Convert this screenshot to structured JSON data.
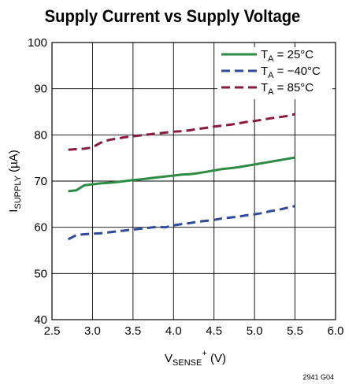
{
  "chart_data": {
    "type": "line",
    "title": "Supply Current vs Supply Voltage",
    "xlabel": {
      "main": "V",
      "sub": "SENSE",
      "sup": "+",
      "unit": " (V)"
    },
    "ylabel": {
      "main": "I",
      "sub": "SUPPLY",
      "unit": " (µA)"
    },
    "xlim": [
      2.5,
      6.0
    ],
    "ylim": [
      40,
      100
    ],
    "xticks": [
      "2.5",
      "3.0",
      "3.5",
      "4.0",
      "4.5",
      "5.0",
      "5.5",
      "6.0"
    ],
    "yticks": [
      "40",
      "50",
      "60",
      "70",
      "80",
      "90",
      "100"
    ],
    "grid": true,
    "legend_position": "top-right",
    "series": [
      {
        "name": "T_A = 25°C",
        "legend_main": "T",
        "legend_sub": "A",
        "legend_rest": " = 25°C",
        "color": "#2e8b44",
        "dash": "solid",
        "x": [
          2.7,
          2.8,
          2.9,
          3.0,
          3.1,
          3.2,
          3.3,
          3.4,
          3.5,
          3.6,
          3.7,
          3.8,
          3.9,
          4.0,
          4.1,
          4.2,
          4.3,
          4.4,
          4.5,
          4.6,
          4.7,
          4.8,
          4.9,
          5.0,
          5.1,
          5.2,
          5.3,
          5.4,
          5.5
        ],
        "y": [
          67.8,
          68.0,
          69.1,
          69.3,
          69.5,
          69.6,
          69.8,
          70.0,
          70.2,
          70.4,
          70.6,
          70.8,
          71.0,
          71.2,
          71.4,
          71.5,
          71.7,
          72.0,
          72.3,
          72.6,
          72.8,
          73.0,
          73.3,
          73.6,
          73.9,
          74.2,
          74.5,
          74.8,
          75.1
        ]
      },
      {
        "name": "T_A = −40°C",
        "legend_main": "T",
        "legend_sub": "A",
        "legend_rest": " = −40°C",
        "color": "#2e4a9a",
        "dash": "dashed",
        "x": [
          2.7,
          2.8,
          2.9,
          3.0,
          3.1,
          3.2,
          3.3,
          3.4,
          3.5,
          3.6,
          3.7,
          3.8,
          3.9,
          4.0,
          4.1,
          4.2,
          4.3,
          4.4,
          4.5,
          4.6,
          4.7,
          4.8,
          4.9,
          5.0,
          5.1,
          5.2,
          5.3,
          5.4,
          5.5
        ],
        "y": [
          57.4,
          58.3,
          58.5,
          58.6,
          58.7,
          58.9,
          59.1,
          59.3,
          59.5,
          59.7,
          59.9,
          60.1,
          60.0,
          60.4,
          60.7,
          60.9,
          61.2,
          61.4,
          61.6,
          61.9,
          62.1,
          62.3,
          62.6,
          62.8,
          63.1,
          63.5,
          63.8,
          64.2,
          64.6
        ]
      },
      {
        "name": "T_A = 85°C",
        "legend_main": "T",
        "legend_sub": "A",
        "legend_rest": " = 85°C",
        "color": "#8b1a3a",
        "dash": "dashed",
        "x": [
          2.7,
          2.8,
          2.9,
          3.0,
          3.1,
          3.2,
          3.3,
          3.4,
          3.5,
          3.6,
          3.7,
          3.8,
          3.9,
          4.0,
          4.1,
          4.2,
          4.3,
          4.4,
          4.5,
          4.6,
          4.7,
          4.8,
          4.9,
          5.0,
          5.1,
          5.2,
          5.3,
          5.4,
          5.5
        ],
        "y": [
          76.8,
          76.9,
          77.0,
          77.3,
          78.3,
          78.9,
          79.2,
          79.5,
          79.7,
          79.9,
          80.1,
          80.3,
          80.5,
          80.7,
          80.8,
          81.0,
          81.3,
          81.5,
          81.8,
          82.0,
          82.2,
          82.5,
          82.8,
          83.0,
          83.3,
          83.6,
          83.8,
          84.1,
          84.5
        ]
      }
    ]
  },
  "figure_code": "2941 G04"
}
